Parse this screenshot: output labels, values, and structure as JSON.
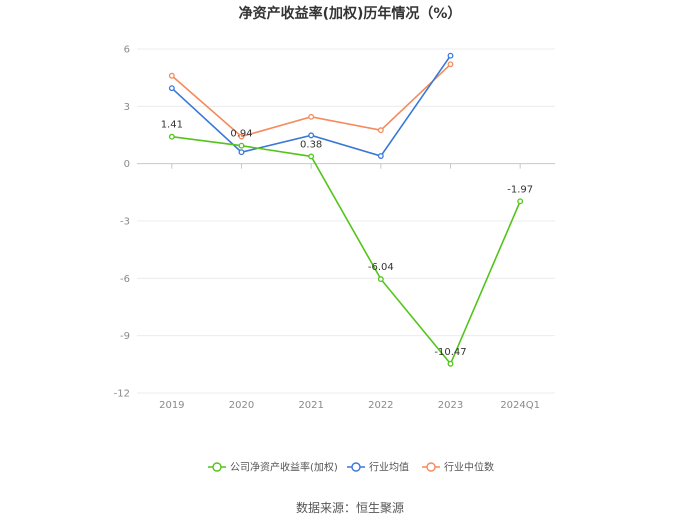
{
  "chart_data": {
    "type": "line",
    "title": "净资产收益率(加权)历年情况（%）",
    "categories": [
      "2019",
      "2020",
      "2021",
      "2022",
      "2023",
      "2024Q1"
    ],
    "ylim": [
      -12,
      6
    ],
    "yticks": [
      "6",
      "3",
      "0",
      "-3",
      "-6",
      "-9",
      "-12"
    ],
    "ytick_values": [
      6,
      3,
      0,
      -3,
      -6,
      -9,
      -12
    ],
    "grid": true,
    "legend_position": "bottom",
    "series": [
      {
        "name": "公司净资产收益率(加权)",
        "color": "#52c41a",
        "values": [
          1.41,
          0.94,
          0.38,
          -6.04,
          -10.47,
          -1.97
        ],
        "labels": [
          "1.41",
          "0.94",
          "0.38",
          "-6.04",
          "-10.47",
          "-1.97"
        ]
      },
      {
        "name": "行业均值",
        "color": "#3a78d8",
        "values": [
          3.95,
          0.6,
          1.48,
          0.4,
          5.65,
          null
        ]
      },
      {
        "name": "行业中位数",
        "color": "#f58a5c",
        "values": [
          4.6,
          1.42,
          2.45,
          1.75,
          5.2,
          null
        ]
      }
    ]
  },
  "source": "数据来源：恒生聚源"
}
